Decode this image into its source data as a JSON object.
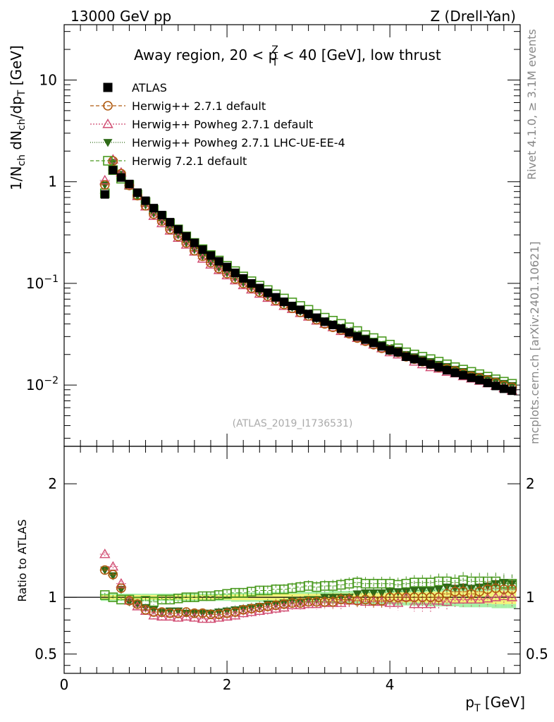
{
  "header": {
    "energy_label": "13000 GeV pp",
    "process_label": "Z (Drell-Yan)"
  },
  "side_labels": {
    "rivet": "Rivet 4.1.0, ≥ 3.1M events",
    "mcplots": "mcplots.cern.ch [arXiv:2401.10621]"
  },
  "chart_data": [
    {
      "type": "scatter",
      "panel": "main",
      "title_parts": {
        "before": "Away region, 20 < p",
        "sup": "Z",
        "sub": "T",
        "after": " < 40 [GeV], low thrust"
      },
      "ylabel": "1/N_ch dN_ch/dp_T [GeV]",
      "ylabel_parts": [
        "1/N",
        "ch",
        " dN",
        "ch",
        "/dp",
        "T",
        " [GeV]"
      ],
      "yscale": "log",
      "ylim": [
        0.0025,
        35
      ],
      "xlim": [
        0,
        5.6
      ],
      "y_ticks": [
        {
          "value": 10,
          "label": "10",
          "sup": ""
        },
        {
          "value": 1,
          "label": "1",
          "sup": ""
        },
        {
          "value": 0.1,
          "label": "10",
          "sup": "−1"
        },
        {
          "value": 0.01,
          "label": "10",
          "sup": "−2"
        }
      ],
      "watermark": "(ATLAS_2019_I1736531)",
      "legend": [
        "ATLAS",
        "Herwig++ 2.7.1 default",
        "Herwig++ Powheg 2.7.1 default",
        "Herwig++ Powheg 2.7.1 LHC-UE-EE-4",
        "Herwig 7.2.1 default"
      ],
      "x": [
        0.5,
        0.6,
        0.7,
        0.8,
        0.9,
        1.0,
        1.1,
        1.2,
        1.3,
        1.4,
        1.5,
        1.6,
        1.7,
        1.8,
        1.9,
        2.0,
        2.1,
        2.2,
        2.3,
        2.4,
        2.5,
        2.6,
        2.7,
        2.8,
        2.9,
        3.0,
        3.1,
        3.2,
        3.3,
        3.4,
        3.5,
        3.6,
        3.7,
        3.8,
        3.9,
        4.0,
        4.1,
        4.2,
        4.3,
        4.4,
        4.5,
        4.6,
        4.7,
        4.8,
        4.9,
        5.0,
        5.1,
        5.2,
        5.3,
        5.4,
        5.5
      ],
      "series": [
        {
          "name": "ATLAS",
          "values": [
            0.75,
            1.3,
            1.1,
            0.95,
            0.78,
            0.65,
            0.55,
            0.47,
            0.4,
            0.34,
            0.29,
            0.25,
            0.215,
            0.188,
            0.165,
            0.145,
            0.127,
            0.112,
            0.1,
            0.09,
            0.081,
            0.073,
            0.066,
            0.06,
            0.055,
            0.05,
            0.046,
            0.042,
            0.039,
            0.036,
            0.033,
            0.03,
            0.028,
            0.026,
            0.024,
            0.022,
            0.021,
            0.019,
            0.018,
            0.017,
            0.016,
            0.015,
            0.014,
            0.0132,
            0.0125,
            0.0118,
            0.0112,
            0.0105,
            0.0098,
            0.0092,
            0.0088
          ]
        },
        {
          "name": "Herwig++ 2.7.1 default",
          "values": [
            0.93,
            1.6,
            1.2,
            0.92,
            0.73,
            0.58,
            0.48,
            0.41,
            0.34,
            0.29,
            0.25,
            0.21,
            0.185,
            0.16,
            0.14,
            0.125,
            0.111,
            0.1,
            0.09,
            0.082,
            0.075,
            0.068,
            0.062,
            0.057,
            0.052,
            0.048,
            0.044,
            0.04,
            0.037,
            0.035,
            0.032,
            0.029,
            0.027,
            0.025,
            0.023,
            0.022,
            0.021,
            0.019,
            0.018,
            0.017,
            0.016,
            0.015,
            0.0145,
            0.0138,
            0.013,
            0.0122,
            0.0118,
            0.0112,
            0.0106,
            0.0099,
            0.0095
          ]
        },
        {
          "name": "Herwig++ Powheg 2.7.1 default",
          "values": [
            1.03,
            1.65,
            1.23,
            0.92,
            0.72,
            0.57,
            0.46,
            0.39,
            0.33,
            0.28,
            0.24,
            0.205,
            0.175,
            0.153,
            0.135,
            0.12,
            0.107,
            0.096,
            0.087,
            0.079,
            0.072,
            0.066,
            0.06,
            0.056,
            0.051,
            0.047,
            0.043,
            0.04,
            0.037,
            0.034,
            0.032,
            0.029,
            0.027,
            0.025,
            0.023,
            0.021,
            0.02,
            0.019,
            0.017,
            0.016,
            0.015,
            0.0145,
            0.0135,
            0.013,
            0.0122,
            0.0116,
            0.011,
            0.0104,
            0.0098,
            0.0093,
            0.0088
          ]
        },
        {
          "name": "Herwig++ Powheg 2.7.1 LHC-UE-EE-4",
          "values": [
            0.93,
            1.55,
            1.18,
            0.91,
            0.73,
            0.59,
            0.49,
            0.41,
            0.35,
            0.3,
            0.25,
            0.215,
            0.185,
            0.162,
            0.143,
            0.127,
            0.113,
            0.101,
            0.091,
            0.083,
            0.076,
            0.069,
            0.063,
            0.058,
            0.053,
            0.049,
            0.045,
            0.042,
            0.039,
            0.036,
            0.033,
            0.031,
            0.029,
            0.027,
            0.025,
            0.023,
            0.022,
            0.02,
            0.019,
            0.018,
            0.017,
            0.016,
            0.0152,
            0.0143,
            0.0136,
            0.0128,
            0.0122,
            0.0116,
            0.011,
            0.0104,
            0.0099
          ]
        },
        {
          "name": "Herwig 7.2.1 default",
          "values": [
            0.77,
            1.3,
            1.07,
            0.93,
            0.75,
            0.63,
            0.53,
            0.46,
            0.39,
            0.34,
            0.29,
            0.25,
            0.217,
            0.19,
            0.168,
            0.149,
            0.132,
            0.117,
            0.105,
            0.095,
            0.086,
            0.078,
            0.071,
            0.065,
            0.06,
            0.055,
            0.05,
            0.046,
            0.043,
            0.04,
            0.037,
            0.034,
            0.031,
            0.029,
            0.027,
            0.025,
            0.023,
            0.021,
            0.02,
            0.019,
            0.018,
            0.017,
            0.016,
            0.015,
            0.0142,
            0.0135,
            0.0128,
            0.0121,
            0.0114,
            0.0108,
            0.0103
          ]
        }
      ]
    },
    {
      "type": "scatter",
      "panel": "ratio",
      "ylabel": "Ratio to ATLAS",
      "xlabel_parts": [
        "p",
        "T",
        " [GeV]"
      ],
      "xlim": [
        0,
        5.6
      ],
      "ylim": [
        0.33,
        2.33
      ],
      "x_ticks": [
        0,
        2,
        4
      ],
      "y_ticks": [
        0.5,
        1,
        2
      ],
      "x": [
        0.5,
        0.6,
        0.7,
        0.8,
        0.9,
        1.0,
        1.1,
        1.2,
        1.3,
        1.4,
        1.5,
        1.6,
        1.7,
        1.8,
        1.9,
        2.0,
        2.1,
        2.2,
        2.3,
        2.4,
        2.5,
        2.6,
        2.7,
        2.8,
        2.9,
        3.0,
        3.1,
        3.2,
        3.3,
        3.4,
        3.5,
        3.6,
        3.7,
        3.8,
        3.9,
        4.0,
        4.1,
        4.2,
        4.3,
        4.4,
        4.5,
        4.6,
        4.7,
        4.8,
        4.9,
        5.0,
        5.1,
        5.2,
        5.3,
        5.4,
        5.5
      ],
      "band_halfwidth": [
        0.02,
        0.02,
        0.02,
        0.02,
        0.02,
        0.02,
        0.02,
        0.02,
        0.02,
        0.02,
        0.02,
        0.02,
        0.02,
        0.02,
        0.02,
        0.02,
        0.025,
        0.025,
        0.025,
        0.025,
        0.025,
        0.03,
        0.03,
        0.03,
        0.03,
        0.03,
        0.03,
        0.03,
        0.035,
        0.035,
        0.035,
        0.035,
        0.04,
        0.04,
        0.04,
        0.04,
        0.045,
        0.045,
        0.045,
        0.045,
        0.05,
        0.05,
        0.05,
        0.05,
        0.055,
        0.055,
        0.055,
        0.055,
        0.06,
        0.06,
        0.06
      ],
      "series": [
        {
          "name": "Herwig++ 2.7.1 default",
          "values": [
            1.24,
            1.2,
            1.08,
            0.97,
            0.94,
            0.89,
            0.87,
            0.87,
            0.86,
            0.86,
            0.87,
            0.86,
            0.86,
            0.85,
            0.85,
            0.86,
            0.87,
            0.89,
            0.9,
            0.91,
            0.92,
            0.93,
            0.94,
            0.95,
            0.95,
            0.96,
            0.96,
            0.96,
            0.96,
            0.98,
            0.98,
            0.97,
            0.98,
            0.97,
            0.97,
            1.0,
            1.0,
            1.0,
            1.0,
            1.0,
            1.0,
            1.0,
            1.03,
            1.05,
            1.05,
            1.03,
            1.05,
            1.07,
            1.08,
            1.07,
            1.07
          ]
        },
        {
          "name": "Herwig++ Powheg 2.7.1 default",
          "values": [
            1.38,
            1.27,
            1.12,
            0.97,
            0.92,
            0.88,
            0.84,
            0.83,
            0.83,
            0.82,
            0.83,
            0.82,
            0.81,
            0.81,
            0.82,
            0.83,
            0.84,
            0.86,
            0.87,
            0.88,
            0.89,
            0.9,
            0.91,
            0.93,
            0.93,
            0.94,
            0.94,
            0.95,
            0.95,
            0.95,
            0.97,
            0.97,
            0.96,
            0.96,
            0.96,
            0.95,
            0.95,
            1.0,
            0.94,
            0.94,
            0.94,
            0.97,
            0.96,
            0.98,
            0.98,
            0.98,
            0.98,
            0.99,
            1.0,
            1.01,
            1.0
          ]
        },
        {
          "name": "Herwig++ Powheg 2.7.1 LHC-UE-EE-4",
          "values": [
            1.24,
            1.19,
            1.07,
            0.96,
            0.94,
            0.91,
            0.89,
            0.87,
            0.88,
            0.88,
            0.86,
            0.86,
            0.86,
            0.86,
            0.87,
            0.88,
            0.89,
            0.9,
            0.91,
            0.92,
            0.94,
            0.94,
            0.95,
            0.97,
            0.96,
            0.98,
            0.98,
            1.0,
            1.0,
            1.0,
            1.0,
            1.03,
            1.04,
            1.04,
            1.04,
            1.05,
            1.05,
            1.05,
            1.06,
            1.06,
            1.06,
            1.07,
            1.09,
            1.08,
            1.09,
            1.08,
            1.09,
            1.1,
            1.12,
            1.13,
            1.12
          ]
        },
        {
          "name": "Herwig 7.2.1 default",
          "values": [
            1.02,
            1.0,
            0.98,
            0.98,
            0.96,
            0.97,
            0.96,
            0.98,
            0.98,
            0.99,
            1.0,
            1.0,
            1.01,
            1.01,
            1.02,
            1.03,
            1.04,
            1.04,
            1.05,
            1.06,
            1.06,
            1.07,
            1.07,
            1.08,
            1.09,
            1.1,
            1.09,
            1.1,
            1.1,
            1.11,
            1.12,
            1.13,
            1.12,
            1.12,
            1.12,
            1.12,
            1.11,
            1.12,
            1.13,
            1.13,
            1.13,
            1.14,
            1.14,
            1.13,
            1.15,
            1.14,
            1.14,
            1.14,
            1.14,
            1.12,
            1.12
          ]
        }
      ]
    }
  ],
  "styles": {
    "ATLAS": {
      "color": "#000000",
      "marker": "filled-square",
      "dash": ""
    },
    "Herwig++ 2.7.1 default": {
      "color": "#b05a10",
      "marker": "open-circle",
      "dash": "5,3"
    },
    "Herwig++ Powheg 2.7.1 default": {
      "color": "#d04a70",
      "marker": "open-triangle",
      "dash": "2,2"
    },
    "Herwig++ Powheg 2.7.1 LHC-UE-EE-4": {
      "color": "#2f6a18",
      "marker": "filled-triangle-down",
      "dash": "1,2"
    },
    "Herwig 7.2.1 default": {
      "color": "#4a9a20",
      "marker": "open-square",
      "dash": "5,3"
    }
  },
  "band_colors": {
    "inner": "#f4f47a",
    "outer": "#a6f0a6"
  }
}
